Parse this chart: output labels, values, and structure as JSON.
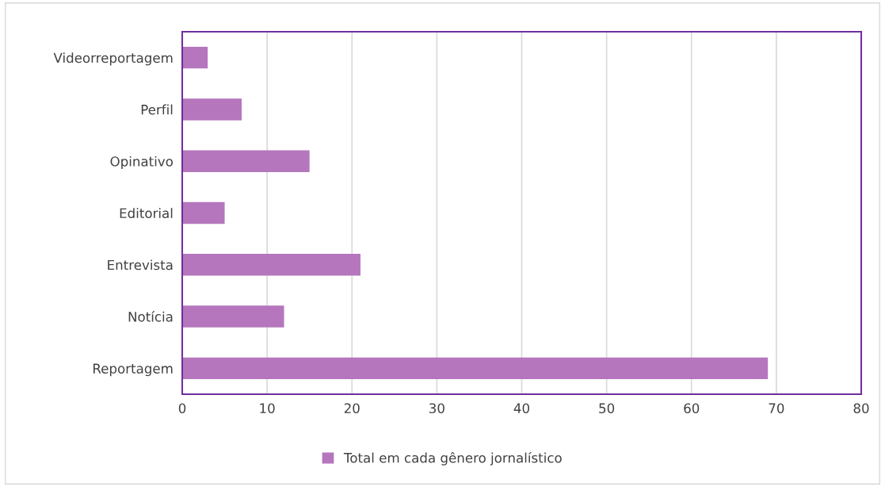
{
  "chart_data": {
    "type": "bar",
    "orientation": "horizontal",
    "categories": [
      "Videorreportagem",
      "Perfil",
      "Opinativo",
      "Editorial",
      "Entrevista",
      "Notícia",
      "Reportagem"
    ],
    "series": [
      {
        "name": "Total em cada gênero jornalístico",
        "color": "#b576bd",
        "values": [
          3,
          7,
          15,
          5,
          21,
          12,
          69
        ]
      }
    ],
    "xlim": [
      0,
      80
    ],
    "xticks": [
      0,
      10,
      20,
      30,
      40,
      50,
      60,
      70,
      80
    ],
    "grid": "x",
    "legend": "bottom"
  }
}
